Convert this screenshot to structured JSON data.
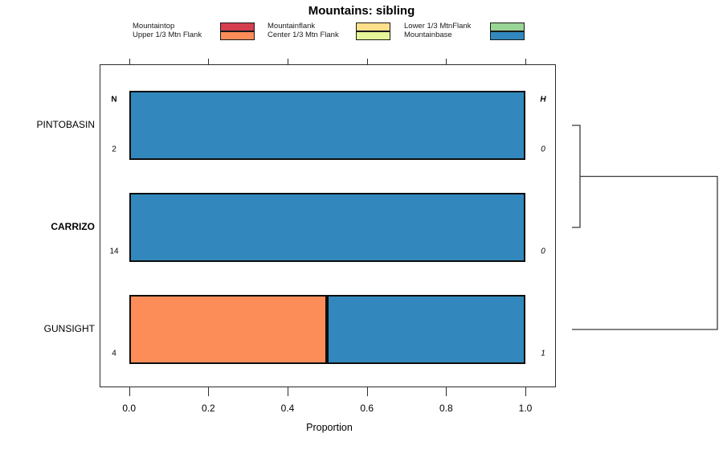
{
  "title": "Mountains: sibling",
  "legend": {
    "columns": [
      {
        "items": [
          {
            "label": "Mountaintop",
            "color": "#D53E4F"
          },
          {
            "label": "Upper 1/3 Mtn Flank",
            "color": "#FC8D59"
          }
        ]
      },
      {
        "items": [
          {
            "label": "Mountainflank",
            "color": "#FEE08B"
          },
          {
            "label": "Center 1/3 Mtn Flank",
            "color": "#E6F598"
          }
        ]
      },
      {
        "items": [
          {
            "label": "Lower 1/3 MtnFlank",
            "color": "#99D594"
          },
          {
            "label": "Mountainbase",
            "color": "#3288BD"
          }
        ]
      }
    ]
  },
  "chart_data": {
    "type": "bar",
    "subtype": "horizontal-stacked-proportion",
    "title": "Mountains: sibling",
    "xlabel": "Proportion",
    "xlim": [
      0,
      1
    ],
    "x_tick_labels": [
      "0.0",
      "0.2",
      "0.4",
      "0.6",
      "0.8",
      "1.0"
    ],
    "x_tick_values": [
      0,
      0.2,
      0.4,
      0.6,
      0.8,
      1.0
    ],
    "categories": [
      "PINTOBASIN",
      "CARRIZO",
      "GUNSIGHT"
    ],
    "emphasized_category": "CARRIZO",
    "left_annotation_header": "N",
    "right_annotation_header": "H",
    "n_values": [
      2,
      14,
      4
    ],
    "h_values": [
      0,
      0,
      1
    ],
    "series": [
      {
        "name": "Mountaintop",
        "color": "#D53E4F",
        "values": [
          0,
          0,
          0
        ]
      },
      {
        "name": "Upper 1/3 Mtn Flank",
        "color": "#FC8D59",
        "values": [
          0,
          0,
          0.5
        ]
      },
      {
        "name": "Mountainflank",
        "color": "#FEE08B",
        "values": [
          0,
          0,
          0
        ]
      },
      {
        "name": "Center 1/3 Mtn Flank",
        "color": "#E6F598",
        "values": [
          0,
          0,
          0
        ]
      },
      {
        "name": "Lower 1/3 MtnFlank",
        "color": "#99D594",
        "values": [
          0,
          0,
          0
        ]
      },
      {
        "name": "Mountainbase",
        "color": "#3288BD",
        "values": [
          1,
          1,
          0.5
        ]
      }
    ],
    "dendrogram": {
      "merges": [
        {
          "members": [
            "PINTOBASIN",
            "CARRIZO"
          ],
          "height": 0
        },
        {
          "members": [
            "(PINTOBASIN,CARRIZO)",
            "GUNSIGHT"
          ],
          "height": 1
        }
      ]
    },
    "legend_position": "top",
    "grid": false
  }
}
